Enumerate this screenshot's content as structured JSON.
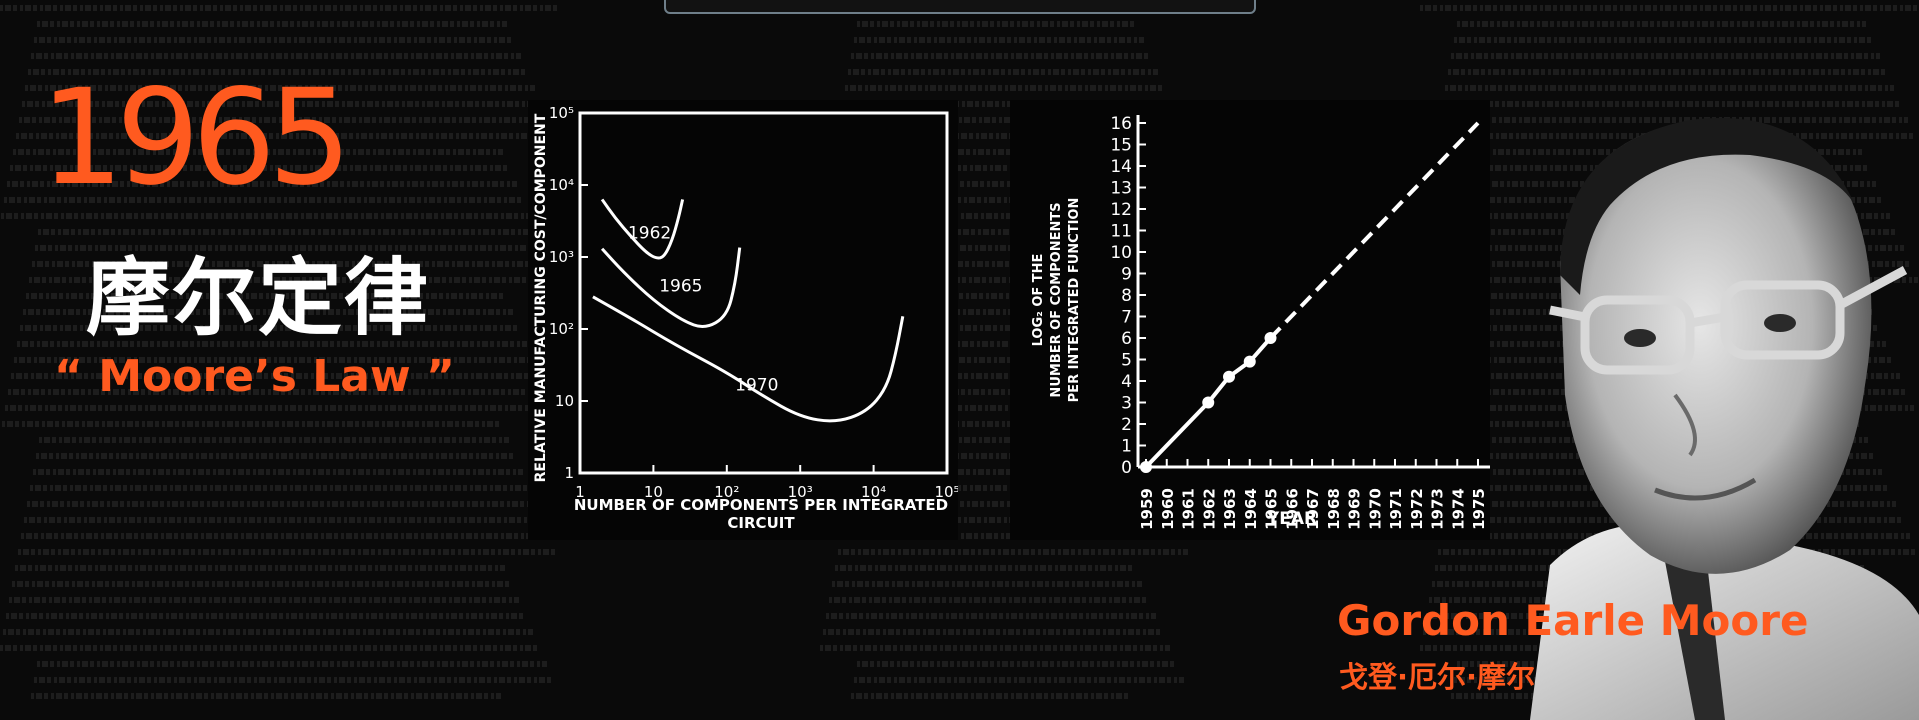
{
  "header": {
    "year": "1965",
    "title_zh": "摩尔定律",
    "title_en": "“ Moore’s Law ”"
  },
  "person": {
    "name": "Gordon Earle Moore",
    "name_zh": "戈登·厄尔·摩尔"
  },
  "colors": {
    "accent": "#ff5a1f",
    "background": "#0a0a0a",
    "chart_paper": "#050505",
    "chart_ink": "#ffffff"
  },
  "chart_data": [
    {
      "type": "line",
      "title": "",
      "xlabel": "NUMBER OF COMPONENTS PER INTEGRATED CIRCUIT",
      "ylabel": "RELATIVE MANUFACTURING COST/COMPONENT",
      "x_scale": "log",
      "y_scale": "log",
      "xlim": [
        1,
        100000
      ],
      "ylim": [
        1,
        100000
      ],
      "x_ticks": [
        "1",
        "10",
        "10²",
        "10³",
        "10⁴",
        "10⁵"
      ],
      "y_ticks": [
        "1",
        "10",
        "10²",
        "10³",
        "10⁴",
        "10⁵"
      ],
      "grid": false,
      "series": [
        {
          "name": "1962",
          "x": [
            2,
            3,
            5,
            8,
            11,
            14,
            18,
            22,
            25
          ],
          "y": [
            6300,
            3500,
            1900,
            1150,
            950,
            1000,
            1700,
            3500,
            6300
          ]
        },
        {
          "name": "1965",
          "x": [
            2,
            4,
            10,
            25,
            50,
            100,
            130,
            150
          ],
          "y": [
            1300,
            600,
            250,
            130,
            100,
            150,
            420,
            1350
          ]
        },
        {
          "name": "1970",
          "x": [
            1.5,
            5,
            20,
            100,
            300,
            1000,
            3000,
            8000,
            15000,
            20000,
            25000
          ],
          "y": [
            280,
            140,
            60,
            25,
            12,
            6,
            5,
            7,
            15,
            45,
            150
          ]
        }
      ]
    },
    {
      "type": "line",
      "title": "",
      "xlabel": "YEAR",
      "ylabel": "LOG₂ OF THE NUMBER OF COMPONENTS PER INTEGRATED FUNCTION",
      "categories": [
        "1959",
        "1960",
        "1961",
        "1962",
        "1963",
        "1964",
        "1965",
        "1966",
        "1967",
        "1968",
        "1969",
        "1970",
        "1971",
        "1972",
        "1973",
        "1974",
        "1975"
      ],
      "ylim": [
        0,
        16
      ],
      "y_ticks": [
        "0",
        "1",
        "2",
        "3",
        "4",
        "5",
        "6",
        "7",
        "8",
        "9",
        "10",
        "11",
        "12",
        "13",
        "14",
        "15",
        "16"
      ],
      "grid": false,
      "series": [
        {
          "name": "",
          "x": [
            1959,
            1962,
            1963,
            1964,
            1965
          ],
          "y": [
            0,
            3,
            4.2,
            4.9,
            6
          ],
          "markers": true,
          "style": "solid"
        },
        {
          "name": "",
          "x": [
            1965,
            1975
          ],
          "y": [
            6,
            16
          ],
          "markers": false,
          "style": "dashed"
        }
      ]
    }
  ]
}
